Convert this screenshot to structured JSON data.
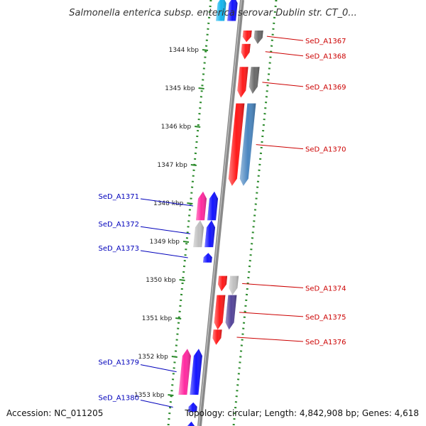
{
  "title": "Salmonella enterica subsp. enterica serovar Dublin str. CT_0...",
  "accession": "Accession: NC_011205",
  "topology": "Topology: circular; Length: 4,842,908 bp; Genes: 4,618",
  "colors": {
    "backbone": "#8a8a8a",
    "tick": "#2a8a2a",
    "forward_label": "#cc0000",
    "reverse_label": "#0000bb",
    "red": "#ff1a1a",
    "blue": "#1414ff",
    "magenta": "#ff2aa0",
    "gray_light": "#c0c0c0",
    "gray_dark": "#6a6a6a",
    "steel": "#4a86c0",
    "purple": "#55459a",
    "cyan": "#16b6ee"
  },
  "kbp_ticks": [
    {
      "label": "1344 kbp",
      "pos": 1344
    },
    {
      "label": "1345 kbp",
      "pos": 1345
    },
    {
      "label": "1346 kbp",
      "pos": 1346
    },
    {
      "label": "1347 kbp",
      "pos": 1347
    },
    {
      "label": "1348 kbp",
      "pos": 1348
    },
    {
      "label": "1349 kbp",
      "pos": 1349
    },
    {
      "label": "1350 kbp",
      "pos": 1350
    },
    {
      "label": "1351 kbp",
      "pos": 1351
    },
    {
      "label": "1352 kbp",
      "pos": 1352
    },
    {
      "label": "1353 kbp",
      "pos": 1353
    }
  ],
  "genes": [
    {
      "id": "g-top-a",
      "start": 1342.6,
      "end": 1343.25,
      "strand": "-",
      "track": "outer",
      "color": "cyan",
      "label": ""
    },
    {
      "id": "g-top-b",
      "start": 1342.6,
      "end": 1343.25,
      "strand": "-",
      "track": "inner",
      "color": "blue",
      "label": ""
    },
    {
      "id": "SeD_A1367",
      "start": 1343.5,
      "end": 1343.8,
      "strand": "+",
      "track": "inner",
      "color": "red",
      "label": "SeD_A1367"
    },
    {
      "id": "SeD_A1367-b",
      "start": 1343.5,
      "end": 1343.85,
      "strand": "+",
      "track": "outer",
      "color": "gray_dark",
      "label": ""
    },
    {
      "id": "SeD_A1368",
      "start": 1343.85,
      "end": 1344.25,
      "strand": "+",
      "track": "inner",
      "color": "red",
      "label": "SeD_A1368"
    },
    {
      "id": "SeD_A1369",
      "start": 1344.45,
      "end": 1345.25,
      "strand": "+",
      "track": "inner",
      "color": "red",
      "label": "SeD_A1369"
    },
    {
      "id": "SeD_A1369-b",
      "start": 1344.45,
      "end": 1345.15,
      "strand": "+",
      "track": "outer",
      "color": "gray_dark",
      "label": ""
    },
    {
      "id": "SeD_A1370",
      "start": 1345.4,
      "end": 1347.55,
      "strand": "+",
      "track": "inner",
      "color": "red",
      "label": "SeD_A1370"
    },
    {
      "id": "SeD_A1370-b",
      "start": 1345.4,
      "end": 1347.55,
      "strand": "+",
      "track": "outer",
      "color": "steel",
      "label": ""
    },
    {
      "id": "SeD_A1371",
      "start": 1347.7,
      "end": 1348.45,
      "strand": "-",
      "track": "outer",
      "color": "magenta",
      "label": "SeD_A1371"
    },
    {
      "id": "SeD_A1371-b",
      "start": 1347.7,
      "end": 1348.45,
      "strand": "-",
      "track": "inner",
      "color": "blue",
      "label": ""
    },
    {
      "id": "SeD_A1372",
      "start": 1348.45,
      "end": 1349.15,
      "strand": "-",
      "track": "inner",
      "color": "blue",
      "label": "SeD_A1372"
    },
    {
      "id": "SeD_A1372-b",
      "start": 1348.45,
      "end": 1349.15,
      "strand": "-",
      "track": "outer",
      "color": "gray_light",
      "label": ""
    },
    {
      "id": "SeD_A1373",
      "start": 1349.3,
      "end": 1349.55,
      "strand": "-",
      "track": "inner",
      "color": "blue",
      "label": "SeD_A1373"
    },
    {
      "id": "SeD_A1374",
      "start": 1349.9,
      "end": 1350.3,
      "strand": "+",
      "track": "inner",
      "color": "red",
      "label": "SeD_A1374"
    },
    {
      "id": "SeD_A1374-b",
      "start": 1349.9,
      "end": 1350.4,
      "strand": "+",
      "track": "outer",
      "color": "gray_light",
      "label": ""
    },
    {
      "id": "SeD_A1375",
      "start": 1350.4,
      "end": 1351.3,
      "strand": "+",
      "track": "inner",
      "color": "red",
      "label": "SeD_A1375"
    },
    {
      "id": "SeD_A1375-b",
      "start": 1350.4,
      "end": 1351.3,
      "strand": "+",
      "track": "outer",
      "color": "purple",
      "label": ""
    },
    {
      "id": "SeD_A1376",
      "start": 1351.3,
      "end": 1351.7,
      "strand": "+",
      "track": "inner",
      "color": "red",
      "label": "SeD_A1376"
    },
    {
      "id": "SeD_A1379",
      "start": 1351.8,
      "end": 1353.0,
      "strand": "-",
      "track": "outer",
      "color": "magenta",
      "label": "SeD_A1379"
    },
    {
      "id": "SeD_A1379-b",
      "start": 1351.8,
      "end": 1353.0,
      "strand": "-",
      "track": "inner",
      "color": "blue",
      "label": ""
    },
    {
      "id": "SeD_A1380",
      "start": 1353.2,
      "end": 1353.45,
      "strand": "-",
      "track": "inner",
      "color": "blue",
      "label": "SeD_A1380"
    },
    {
      "id": "g-bottom",
      "start": 1353.7,
      "end": 1354.0,
      "strand": "-",
      "track": "inner",
      "color": "blue",
      "label": ""
    }
  ]
}
